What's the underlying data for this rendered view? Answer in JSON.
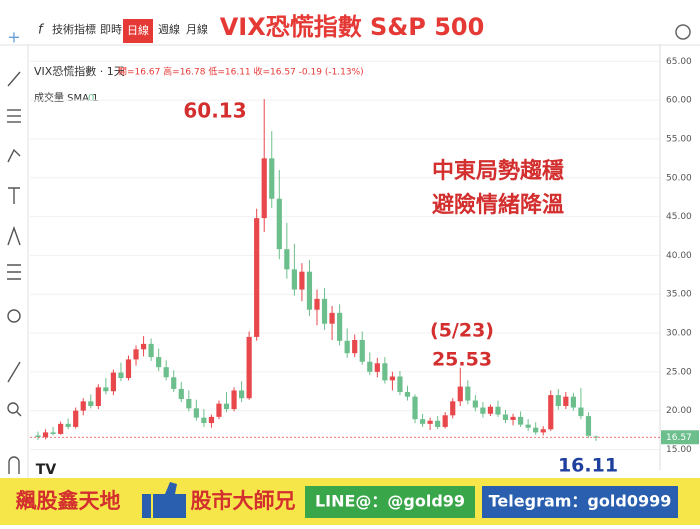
{
  "chart_data": {
    "type": "candlestick",
    "title": "VIX恐慌指數 S&P 500",
    "legend_name": "VIX恐慌指數 · 1天",
    "legend_ohlc": "開=16.67 高=16.78 低=16.11 收=16.57 -0.19 (-1.13%)",
    "volume_label": "成交量 SMA 1",
    "volume_value": 0,
    "annotations": [
      "60.13",
      "中東局勢趨穩",
      "避險情緒降溫",
      "(5/23)",
      "25.53",
      "16.11"
    ],
    "last_price": 16.57,
    "up_color": "#e8474b",
    "down_color": "#6cbf8c",
    "grid": true,
    "ylim": [
      13.9,
      66.2
    ],
    "yticks": [
      {
        "value": 15,
        "label": "15.00"
      },
      {
        "value": 20,
        "label": "20.00"
      },
      {
        "value": 25,
        "label": "25.00"
      },
      {
        "value": 30,
        "label": "30.00"
      },
      {
        "value": 35,
        "label": "35.00"
      },
      {
        "value": 40,
        "label": "40.00"
      },
      {
        "value": 45,
        "label": "45.00"
      },
      {
        "value": 50,
        "label": "50.00"
      },
      {
        "value": 55,
        "label": "55.00"
      },
      {
        "value": 60,
        "label": "60.00"
      },
      {
        "value": 65,
        "label": "65.00"
      }
    ],
    "open": [
      16.8,
      16.6,
      17.2,
      17.0,
      18.3,
      17.9,
      20.0,
      21.2,
      20.6,
      23.0,
      22.5,
      24.9,
      24.2,
      26.6,
      27.9,
      28.6,
      26.9,
      25.6,
      24.3,
      22.8,
      21.5,
      20.3,
      19.1,
      18.4,
      19.2,
      20.9,
      20.2,
      22.6,
      21.6,
      29.5,
      44.8,
      52.5,
      47.3,
      40.8,
      38.2,
      35.6,
      37.9,
      33.0,
      34.4,
      31.2,
      32.6,
      29.0,
      27.4,
      29.1,
      26.3,
      25.0,
      26.1,
      23.9,
      24.4,
      22.4,
      21.8,
      18.9,
      18.3,
      18.7,
      17.9,
      19.4,
      21.2,
      23.1,
      21.3,
      20.4,
      19.6,
      20.5,
      19.5,
      18.8,
      19.2,
      18.2,
      17.8,
      17.2,
      17.6,
      22.0,
      20.6,
      21.8,
      20.4,
      19.3,
      16.67
    ],
    "high": [
      17.3,
      17.6,
      17.9,
      18.6,
      19.0,
      20.4,
      21.6,
      22.1,
      23.4,
      24.2,
      25.3,
      26.2,
      27.1,
      28.4,
      29.6,
      29.3,
      28.0,
      26.5,
      25.2,
      23.7,
      22.6,
      21.4,
      20.2,
      19.5,
      21.3,
      22.4,
      23.0,
      23.8,
      30.2,
      46.0,
      60.13,
      56.0,
      51.0,
      44.2,
      41.5,
      39.0,
      39.4,
      35.6,
      35.8,
      33.5,
      33.7,
      30.6,
      29.8,
      30.2,
      27.5,
      26.8,
      26.9,
      25.0,
      25.1,
      23.2,
      22.1,
      19.6,
      19.1,
      19.3,
      19.8,
      21.6,
      25.53,
      23.9,
      22.0,
      21.1,
      20.8,
      21.3,
      20.1,
      19.6,
      19.9,
      18.9,
      18.5,
      18.0,
      22.6,
      22.8,
      22.4,
      22.3,
      22.9,
      19.8,
      16.78
    ],
    "low": [
      16.2,
      16.3,
      16.8,
      16.9,
      17.6,
      17.7,
      19.4,
      20.3,
      20.2,
      22.1,
      22.0,
      23.8,
      23.9,
      25.8,
      27.0,
      26.4,
      25.1,
      23.9,
      22.4,
      21.1,
      19.9,
      18.7,
      17.9,
      17.8,
      18.9,
      19.8,
      19.9,
      21.1,
      21.4,
      29.0,
      43.0,
      46.1,
      39.5,
      37.0,
      34.8,
      34.1,
      32.2,
      31.0,
      30.4,
      29.1,
      28.4,
      26.8,
      26.9,
      25.9,
      24.6,
      24.3,
      23.5,
      22.6,
      22.0,
      21.3,
      18.4,
      17.9,
      17.5,
      17.6,
      17.7,
      19.0,
      20.6,
      20.8,
      19.9,
      19.1,
      19.3,
      19.2,
      18.4,
      18.1,
      17.9,
      17.4,
      16.9,
      16.8,
      17.4,
      20.1,
      20.2,
      20.0,
      18.9,
      16.5,
      16.11
    ],
    "close": [
      16.6,
      17.2,
      17.0,
      18.3,
      17.9,
      20.0,
      21.2,
      20.6,
      23.0,
      22.5,
      24.9,
      24.2,
      26.6,
      27.9,
      28.6,
      26.9,
      25.6,
      24.3,
      22.8,
      21.5,
      20.3,
      19.1,
      18.4,
      19.2,
      20.9,
      20.2,
      22.6,
      21.6,
      29.5,
      44.8,
      52.5,
      47.3,
      40.8,
      38.2,
      35.6,
      37.9,
      33.0,
      34.4,
      31.2,
      32.6,
      29.0,
      27.4,
      29.1,
      26.3,
      25.0,
      26.1,
      23.9,
      24.4,
      22.4,
      21.8,
      18.9,
      18.3,
      18.7,
      17.9,
      19.4,
      21.2,
      23.1,
      21.3,
      20.4,
      19.6,
      20.5,
      19.5,
      18.8,
      19.2,
      18.2,
      17.8,
      17.2,
      17.6,
      22.0,
      20.6,
      21.8,
      20.4,
      19.3,
      16.76,
      16.57
    ]
  },
  "toolbar": [
    "技術指標",
    "即時",
    "日線",
    "週線",
    "月線"
  ],
  "banner": {
    "left": "飆股鑫天地",
    "middle": "股市大師兄",
    "line": "LINE@：@gold99",
    "telegram": "Telegram：gold0999"
  }
}
